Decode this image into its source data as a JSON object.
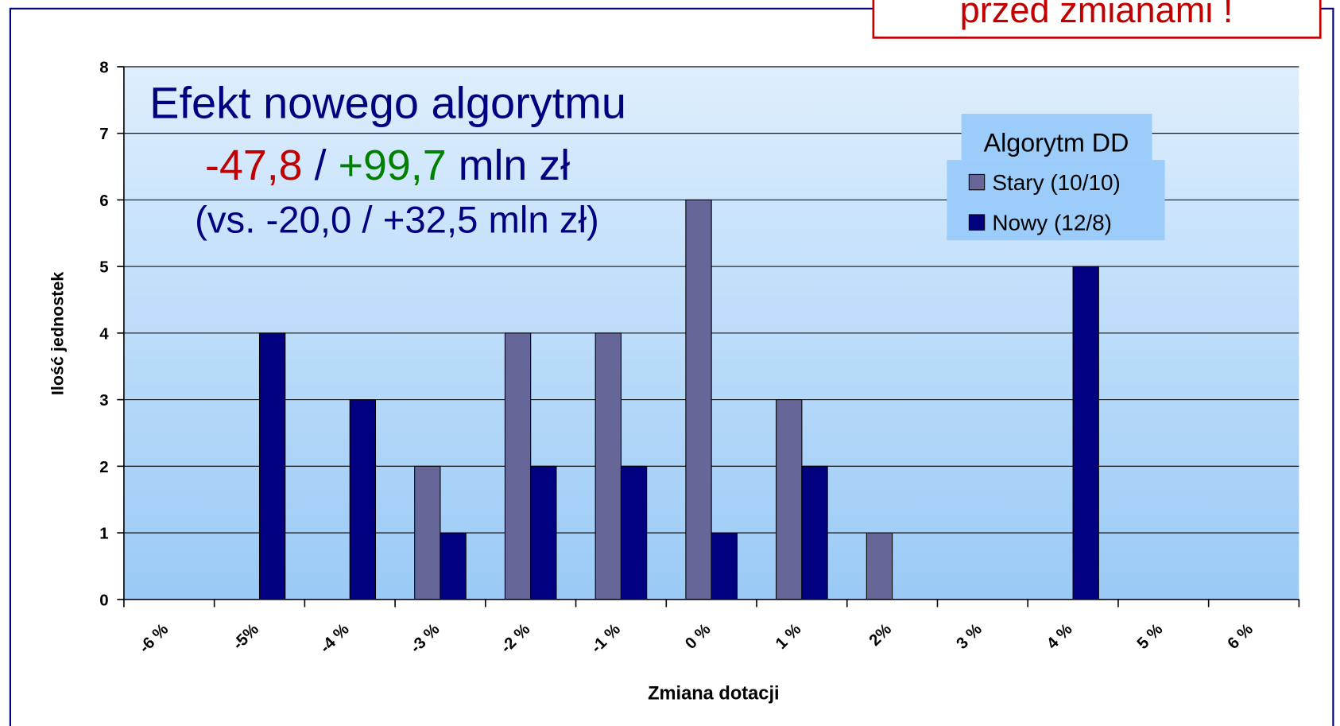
{
  "chart_data": {
    "type": "bar",
    "title": "Efekt nowego algorytmu",
    "subtitle_parts": [
      {
        "text": "-47,8",
        "color": "#c00000"
      },
      {
        "text": "/",
        "color": "#000080"
      },
      {
        "text": "+99,7",
        "color": "#008000"
      },
      {
        "text": "mln zł",
        "color": "#000080"
      }
    ],
    "comparison": "(vs. -20,0 / +32,5 mln zł)",
    "stamp": "przed zmianami !",
    "x_label": "Zmiana dotacji",
    "y_label": "Ilość jednostek",
    "legend_title": "Algorytm DD",
    "categories": [
      "-6 %",
      "-5%",
      "-4 %",
      "-3 %",
      "-2 %",
      "-1 %",
      "0 %",
      "1 %",
      "2%",
      "3 %",
      "4 %",
      "5 %",
      "6 %"
    ],
    "series": [
      {
        "name": "Stary (10/10)",
        "color": "#666699",
        "values": [
          0,
          0,
          0,
          2,
          4,
          4,
          6,
          3,
          1,
          0,
          0,
          0,
          0
        ]
      },
      {
        "name": "Nowy (12/8)",
        "color": "#000080",
        "values": [
          0,
          4,
          3,
          1,
          2,
          2,
          1,
          2,
          0,
          0,
          5,
          0,
          0
        ]
      }
    ],
    "ylim": [
      0,
      8
    ],
    "yticks": [
      0,
      1,
      2,
      3,
      4,
      5,
      6,
      7,
      8
    ],
    "grid": true
  }
}
